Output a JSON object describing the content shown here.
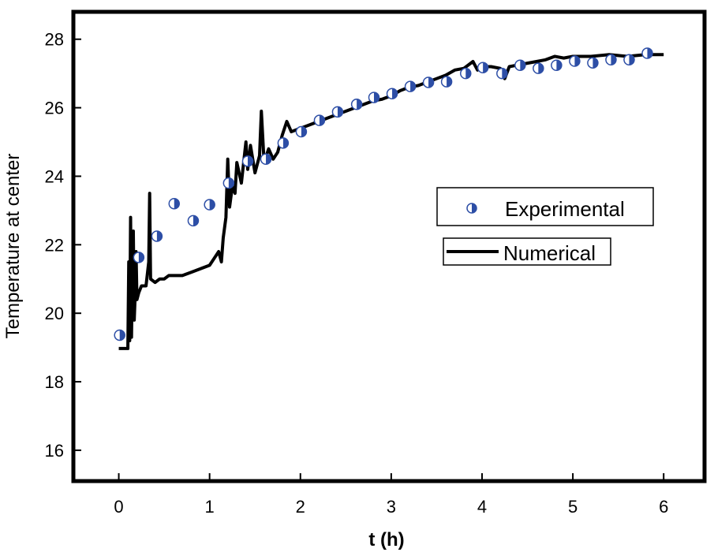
{
  "chart_data": {
    "type": "scatter+line",
    "title": "",
    "xlabel": "t (h)",
    "ylabel": "Temperature at center",
    "xlim": [
      -0.5,
      6.45
    ],
    "ylim": [
      15.1,
      28.8
    ],
    "xticks": [
      0,
      1,
      2,
      3,
      4,
      5,
      6
    ],
    "yticks": [
      16,
      18,
      20,
      22,
      24,
      26,
      28
    ],
    "grid": false,
    "legend_placement": "center-right",
    "series": [
      {
        "name": "Experimental",
        "type": "scatter",
        "color": "#2d4ea6",
        "x": [
          0.01,
          0.22,
          0.42,
          0.61,
          0.82,
          1.0,
          1.21,
          1.42,
          1.62,
          1.81,
          2.01,
          2.21,
          2.41,
          2.62,
          2.81,
          3.01,
          3.21,
          3.41,
          3.61,
          3.82,
          4.01,
          4.22,
          4.42,
          4.62,
          4.82,
          5.02,
          5.22,
          5.42,
          5.62,
          5.82
        ],
        "y": [
          19.36,
          21.63,
          22.25,
          23.2,
          22.7,
          23.17,
          23.8,
          24.44,
          24.5,
          24.97,
          25.3,
          25.63,
          25.88,
          26.1,
          26.3,
          26.41,
          26.62,
          26.74,
          26.76,
          27.0,
          27.17,
          27.0,
          27.24,
          27.15,
          27.24,
          27.36,
          27.31,
          27.4,
          27.4,
          27.59
        ]
      },
      {
        "name": "Numerical",
        "type": "line",
        "color": "#000000",
        "x": [
          0,
          0.1,
          0.11,
          0.12,
          0.13,
          0.14,
          0.15,
          0.16,
          0.17,
          0.18,
          0.19,
          0.2,
          0.22,
          0.25,
          0.3,
          0.33,
          0.34,
          0.35,
          0.4,
          0.45,
          0.5,
          0.55,
          0.6,
          0.7,
          0.8,
          0.9,
          1.0,
          1.05,
          1.1,
          1.13,
          1.15,
          1.18,
          1.2,
          1.22,
          1.25,
          1.28,
          1.3,
          1.35,
          1.4,
          1.42,
          1.45,
          1.5,
          1.55,
          1.57,
          1.6,
          1.65,
          1.7,
          1.75,
          1.8,
          1.85,
          1.9,
          2.0,
          2.1,
          2.2,
          2.3,
          2.4,
          2.5,
          2.6,
          2.7,
          2.8,
          2.9,
          3.0,
          3.1,
          3.2,
          3.3,
          3.4,
          3.5,
          3.6,
          3.7,
          3.8,
          3.9,
          3.95,
          4.0,
          4.1,
          4.2,
          4.25,
          4.3,
          4.4,
          4.5,
          4.6,
          4.7,
          4.8,
          4.9,
          5.0,
          5.2,
          5.4,
          5.6,
          5.8,
          6.0
        ],
        "y": [
          18.97,
          18.97,
          21.5,
          19.2,
          22.8,
          19.3,
          21.3,
          22.4,
          19.8,
          20.5,
          21.8,
          20.4,
          20.6,
          20.8,
          20.8,
          21.5,
          23.5,
          21.0,
          20.9,
          21.0,
          21.0,
          21.1,
          21.1,
          21.1,
          21.2,
          21.3,
          21.4,
          21.6,
          21.8,
          21.5,
          22.2,
          22.8,
          24.5,
          23.1,
          23.7,
          23.5,
          24.4,
          23.8,
          25.0,
          24.2,
          24.9,
          24.1,
          24.6,
          25.9,
          24.4,
          24.8,
          24.5,
          24.7,
          25.2,
          25.6,
          25.3,
          25.4,
          25.5,
          25.6,
          25.7,
          25.8,
          25.9,
          26.0,
          26.1,
          26.2,
          26.25,
          26.35,
          26.5,
          26.6,
          26.65,
          26.75,
          26.85,
          26.95,
          27.1,
          27.15,
          27.35,
          27.1,
          27.2,
          27.2,
          27.15,
          26.85,
          27.2,
          27.25,
          27.3,
          27.35,
          27.4,
          27.5,
          27.45,
          27.5,
          27.5,
          27.55,
          27.5,
          27.55,
          27.55
        ]
      }
    ]
  }
}
